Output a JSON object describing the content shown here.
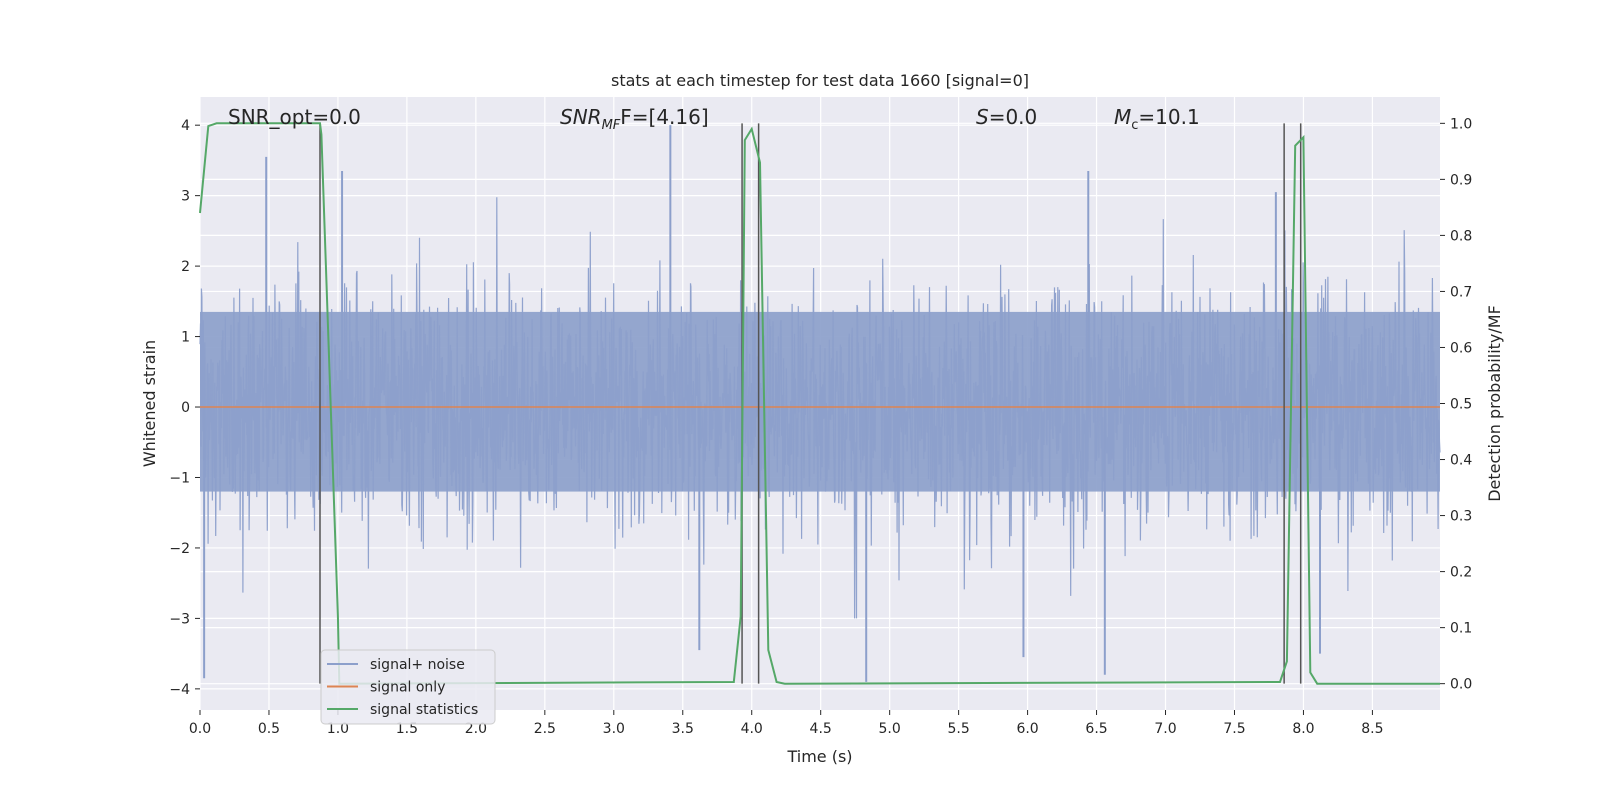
{
  "chart_data": {
    "type": "line",
    "title": "stats at each timestep for test data 1660 [signal=0]",
    "xlabel": "Time (s)",
    "ylabel_left": "Whitened strain",
    "ylabel_right": "Detection probability/MF",
    "xlim": [
      0.0,
      8.99
    ],
    "ylim_left": [
      -4.3,
      4.4
    ],
    "ylim_right": [
      -0.047,
      1.047
    ],
    "x_ticks": [
      "0.0",
      "0.5",
      "1.0",
      "1.5",
      "2.0",
      "2.5",
      "3.0",
      "3.5",
      "4.0",
      "4.5",
      "5.0",
      "5.5",
      "6.0",
      "6.5",
      "7.0",
      "7.5",
      "8.0",
      "8.5"
    ],
    "y_ticks_left": [
      4,
      3,
      2,
      1,
      0,
      -1,
      -2,
      -3,
      -4
    ],
    "y_ticks_left_labels": [
      "4",
      "3",
      "2",
      "1",
      "0",
      "−1",
      "−2",
      "−3",
      "−4"
    ],
    "y_ticks_right": [
      1.0,
      0.9,
      0.8,
      0.7,
      0.6,
      0.5,
      0.4,
      0.3,
      0.2,
      0.1,
      0.0
    ],
    "y_ticks_right_labels": [
      "1.0",
      "0.9",
      "0.8",
      "0.7",
      "0.6",
      "0.5",
      "0.4",
      "0.3",
      "0.2",
      "0.1",
      "0.0"
    ],
    "grid": true,
    "annotations": {
      "snr_opt": "SNR_opt=0.0",
      "snr_mf_italic": "SNR",
      "snr_mf_sub": "MF",
      "snr_mf_rest": "F=[4.16]",
      "s_italic": "S",
      "s_rest": "=0.0",
      "mc_italic": "M",
      "mc_sub": "c",
      "mc_rest": "=10.1"
    },
    "legend": {
      "placement": "lower-left",
      "entries": [
        "signal+ noise",
        "signal only",
        "signal statistics"
      ]
    },
    "colors": {
      "noise": "#8c9fcb",
      "signal": "#dd8452",
      "stats": "#55a868",
      "vline": "#555555",
      "background": "#eaeaf2",
      "grid": "#ffffff"
    },
    "series": [
      {
        "name": "signal+ noise",
        "axis": "left",
        "note_random": true,
        "x_range": [
          0.0,
          8.99
        ],
        "envelope_typical": [
          -2.0,
          2.5
        ],
        "spikes": [
          {
            "x": 0.03,
            "y": -3.85
          },
          {
            "x": 0.48,
            "y": 3.55
          },
          {
            "x": 1.03,
            "y": 3.35
          },
          {
            "x": 3.41,
            "y": 4.0
          },
          {
            "x": 3.62,
            "y": -3.45
          },
          {
            "x": 4.83,
            "y": -3.9
          },
          {
            "x": 5.97,
            "y": -3.55
          },
          {
            "x": 6.44,
            "y": 3.35
          },
          {
            "x": 6.56,
            "y": -3.8
          },
          {
            "x": 7.8,
            "y": 3.05
          },
          {
            "x": 8.12,
            "y": -3.5
          }
        ]
      },
      {
        "name": "signal only",
        "axis": "left",
        "x": [
          0.0,
          8.99
        ],
        "y": [
          0.0,
          0.0
        ]
      },
      {
        "name": "signal statistics",
        "axis": "right",
        "x": [
          0.0,
          0.06,
          0.12,
          0.5,
          0.87,
          0.88,
          1.0,
          1.01,
          3.87,
          3.92,
          3.95,
          4.0,
          4.06,
          4.12,
          4.18,
          4.24,
          7.83,
          7.88,
          7.94,
          8.0,
          8.05,
          8.1,
          8.99
        ],
        "y": [
          0.84,
          0.995,
          1.0,
          1.0,
          1.0,
          0.98,
          0.12,
          0.0,
          0.003,
          0.12,
          0.97,
          0.99,
          0.93,
          0.06,
          0.003,
          0.0,
          0.003,
          0.04,
          0.96,
          0.975,
          0.02,
          0.0,
          0.0
        ]
      }
    ],
    "vertical_lines_x": [
      0.87,
      3.93,
      4.05,
      7.86,
      7.98
    ]
  }
}
